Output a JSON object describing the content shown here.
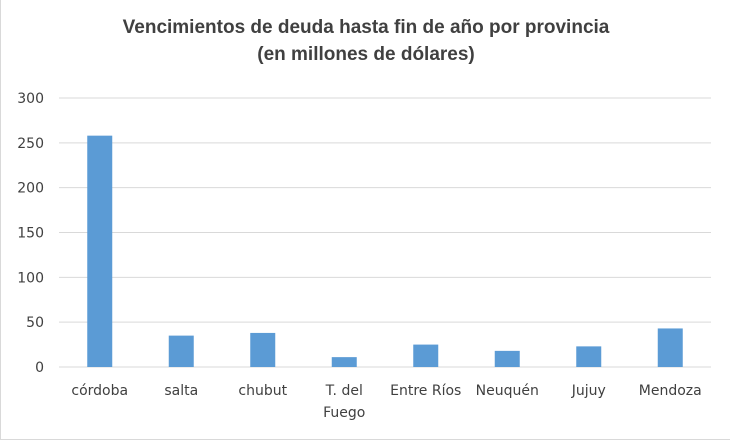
{
  "chart_data": {
    "type": "bar",
    "title": "Vencimientos de deuda hasta fin de año por provincia",
    "subtitle": "(en millones de dólares)",
    "categories": [
      "córdoba",
      "salta",
      "chubut",
      "T. del Fuego",
      "Entre Ríos",
      "Neuquén",
      "Jujuy",
      "Mendoza"
    ],
    "category_lines": [
      [
        "córdoba"
      ],
      [
        "salta"
      ],
      [
        "chubut"
      ],
      [
        "T. del",
        "Fuego"
      ],
      [
        "Entre Ríos"
      ],
      [
        "Neuquén"
      ],
      [
        "Jujuy"
      ],
      [
        "Mendoza"
      ]
    ],
    "values": [
      258,
      35,
      38,
      11,
      25,
      18,
      23,
      43
    ],
    "yticks": [
      0,
      50,
      100,
      150,
      200,
      250,
      300
    ],
    "ylim": [
      0,
      300
    ],
    "xlabel": "",
    "ylabel": "",
    "grid": true,
    "legend": "none",
    "bar_color": "#5b9bd5",
    "grid_color": "#d9d9d9"
  }
}
